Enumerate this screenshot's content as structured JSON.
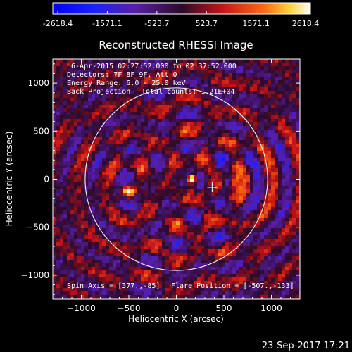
{
  "colorbar": {
    "tick_labels": [
      "-2618.4",
      "-1571.1",
      "-523.7",
      "523.7",
      "1571.1",
      "2618.4"
    ],
    "stops": [
      {
        "pos": 0.0,
        "color": "#0000ff"
      },
      {
        "pos": 0.16,
        "color": "#1a22ff"
      },
      {
        "pos": 0.32,
        "color": "#5a1ea8"
      },
      {
        "pos": 0.5,
        "color": "#2b0a2a"
      },
      {
        "pos": 0.66,
        "color": "#c81418"
      },
      {
        "pos": 0.82,
        "color": "#ff6a10"
      },
      {
        "pos": 0.92,
        "color": "#ffd23a"
      },
      {
        "pos": 1.0,
        "color": "#ffffff"
      }
    ]
  },
  "plot": {
    "title": "Reconstructed RHESSI Image",
    "xlabel": "Heliocentric X (arcsec)",
    "ylabel": "Heliocentric Y (arcsec)",
    "xlim": [
      -1300,
      1300
    ],
    "ylim": [
      -1250,
      1250
    ],
    "xticks": [
      -1000,
      -500,
      0,
      500,
      1000
    ],
    "yticks": [
      -1000,
      -500,
      0,
      500,
      1000
    ],
    "xtick_labels": [
      "−1000",
      "−500",
      "0",
      "500",
      "1000"
    ],
    "ytick_labels": [
      "−1000",
      "−500",
      "0",
      "500",
      "1000"
    ],
    "solar_limb_radius": 960,
    "sun_center": [
      0,
      0
    ],
    "flare_marker": [
      377,
      -85
    ],
    "hot_spots": [
      {
        "x": -507,
        "y": -133,
        "peak": 1.0
      },
      {
        "x": 160,
        "y": 0,
        "peak": 0.75
      },
      {
        "x": 620,
        "y": -40,
        "peak": 0.7
      }
    ],
    "annotations": {
      "time_range": "6-Apr-2015 02:27:52.000 to 02:37:52.000",
      "detectors": "Detectors: 7F 8F 9F, Att 0",
      "energy": "Energy Range: 6.0 - 25.0 keV",
      "method": "Back Projection",
      "counts": "Total counts: 1.21E+04",
      "spin_axis": "Spin Axis = [377.,-85]",
      "flare_position": "Flare Position = [-507.,-133]"
    }
  },
  "footer": {
    "timestamp": "23-Sep-2017 17:21"
  }
}
